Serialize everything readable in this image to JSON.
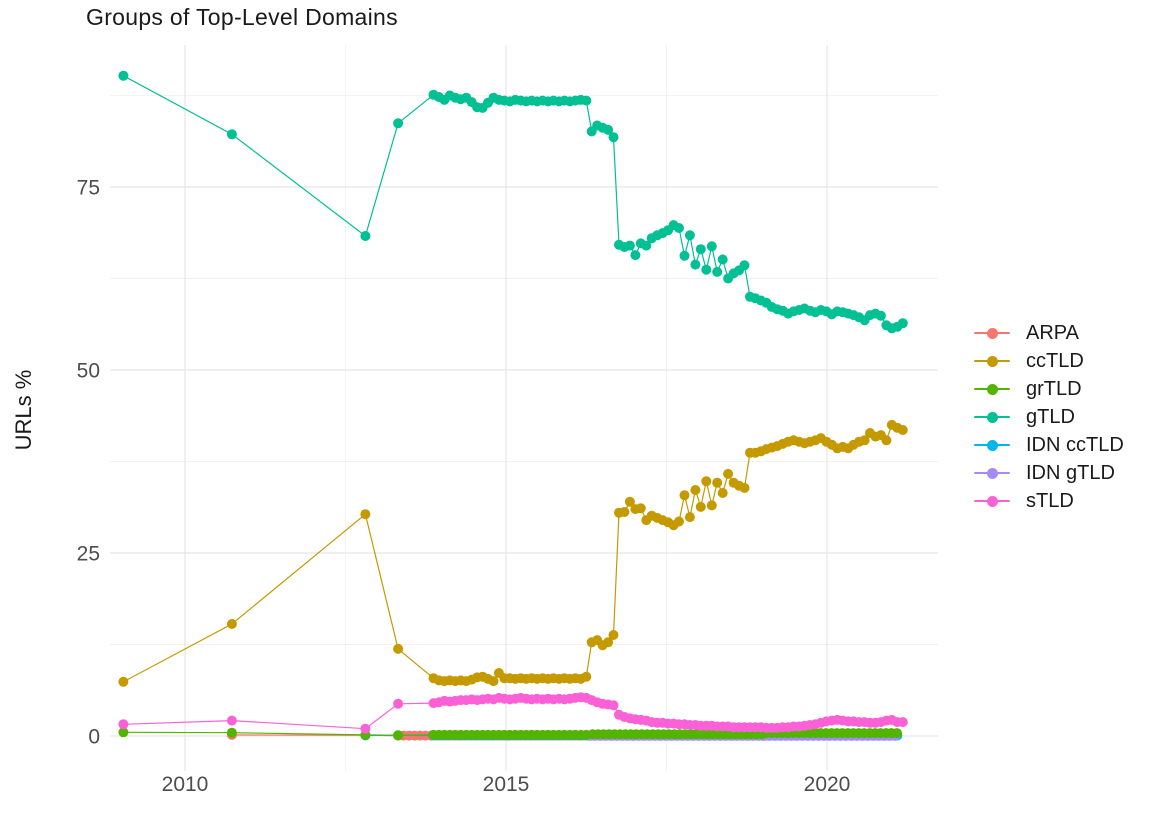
{
  "chart_data": {
    "type": "line",
    "title": "Groups of Top-Level Domains",
    "xlabel": "",
    "ylabel": "URLs %",
    "x_ticks": [
      2010,
      2015,
      2020
    ],
    "x_minor_ticks": [
      2012.5,
      2017.5
    ],
    "y_ticks": [
      0,
      25,
      50,
      75
    ],
    "y_minor_ticks": [
      12.5,
      37.5,
      62.5,
      87.5
    ],
    "xlim": [
      2008.85,
      2021.75
    ],
    "ylim": [
      -4.8,
      94.5
    ],
    "grid": true,
    "legend_position": "right",
    "marker": "point",
    "series": [
      {
        "name": "ARPA",
        "color": "#F8766D",
        "points": [
          [
            2010.73,
            0.15
          ],
          [
            2012.81,
            0.1
          ]
        ],
        "flat_runs": [
          {
            "from": 2013.32,
            "to": 2021.1,
            "step": 0.085,
            "value": 0.05
          }
        ]
      },
      {
        "name": "ccTLD",
        "color": "#C49A00",
        "points": [
          [
            2009.04,
            7.4
          ],
          [
            2010.73,
            15.3
          ],
          [
            2012.81,
            30.3
          ],
          [
            2013.32,
            11.9
          ]
        ],
        "monthly": {
          "x_start": 2013.87,
          "x_step": 0.085,
          "y": [
            7.9,
            7.6,
            7.5,
            7.6,
            7.5,
            7.6,
            7.5,
            7.7,
            8.0,
            8.1,
            7.8,
            7.5,
            8.6,
            7.9,
            7.9,
            7.8,
            7.9,
            7.8,
            7.9,
            7.8,
            7.9,
            7.8,
            7.9,
            7.8,
            7.9,
            7.8,
            7.9,
            7.8,
            8.1,
            12.8,
            13.1,
            12.4,
            12.8,
            13.8,
            30.5,
            30.6,
            32.0,
            31.0,
            31.1,
            29.5,
            30.1,
            29.8,
            29.5,
            29.2,
            28.8,
            29.3,
            32.9,
            29.9,
            33.6,
            31.3,
            34.8,
            31.5,
            34.6,
            33.2,
            35.8,
            34.6,
            34.2,
            33.9,
            38.7,
            38.7,
            38.9,
            39.2,
            39.4,
            39.6,
            39.9,
            40.2,
            40.4,
            40.2,
            40.0,
            40.2,
            40.4,
            40.7,
            40.2,
            39.8,
            39.3,
            39.5,
            39.3,
            39.8,
            40.2,
            40.4,
            41.4,
            40.9,
            41.1,
            40.4,
            42.5,
            42.1,
            41.8
          ]
        }
      },
      {
        "name": "grTLD",
        "color": "#53B400",
        "points": [
          [
            2009.04,
            0.5
          ],
          [
            2010.73,
            0.45
          ],
          [
            2012.81,
            0.15
          ],
          [
            2013.32,
            0.1
          ]
        ],
        "flat_runs": [
          {
            "from": 2013.87,
            "to": 2016.3,
            "step": 0.085,
            "value": 0.15
          },
          {
            "from": 2016.35,
            "to": 2019.0,
            "step": 0.085,
            "value": 0.25
          },
          {
            "from": 2019.05,
            "to": 2021.1,
            "step": 0.085,
            "value": 0.4
          }
        ]
      },
      {
        "name": "gTLD",
        "color": "#00C094",
        "points": [
          [
            2009.04,
            90.2
          ],
          [
            2010.73,
            82.2
          ],
          [
            2012.81,
            68.3
          ],
          [
            2013.32,
            83.7
          ]
        ],
        "monthly": {
          "x_start": 2013.87,
          "x_step": 0.085,
          "y": [
            87.6,
            87.3,
            86.9,
            87.5,
            87.2,
            87.0,
            87.2,
            86.6,
            85.9,
            85.8,
            86.5,
            87.2,
            86.9,
            86.8,
            86.7,
            86.9,
            86.8,
            86.7,
            86.8,
            86.7,
            86.8,
            86.7,
            86.8,
            86.7,
            86.8,
            86.7,
            86.8,
            86.9,
            86.8,
            82.6,
            83.4,
            83.1,
            82.8,
            81.8,
            67.1,
            66.8,
            67.0,
            65.7,
            67.3,
            67.0,
            68.0,
            68.4,
            68.7,
            69.1,
            69.8,
            69.4,
            65.6,
            68.4,
            64.4,
            66.5,
            63.7,
            66.9,
            63.4,
            65.1,
            62.5,
            63.2,
            63.6,
            64.3,
            60.0,
            59.8,
            59.5,
            59.2,
            58.6,
            58.3,
            58.1,
            57.7,
            58.0,
            58.2,
            58.4,
            58.1,
            57.9,
            58.2,
            58.0,
            57.6,
            58.0,
            57.9,
            57.7,
            57.5,
            57.2,
            56.8,
            57.5,
            57.7,
            57.4,
            56.1,
            55.7,
            55.9,
            56.4
          ]
        }
      },
      {
        "name": "IDN ccTLD",
        "color": "#00B6EB",
        "points": [
          [
            2012.81,
            0.08
          ],
          [
            2013.32,
            0.08
          ]
        ],
        "flat_runs": [
          {
            "from": 2013.87,
            "to": 2021.1,
            "step": 0.085,
            "value": 0.07
          }
        ]
      },
      {
        "name": "IDN gTLD",
        "color": "#A58AFF",
        "points": [],
        "flat_runs": [
          {
            "from": 2016.3,
            "to": 2021.1,
            "step": 0.085,
            "value": 0.02
          }
        ]
      },
      {
        "name": "sTLD",
        "color": "#FB61D7",
        "points": [
          [
            2009.04,
            1.6
          ],
          [
            2010.73,
            2.1
          ],
          [
            2012.81,
            1.0
          ],
          [
            2013.32,
            4.4
          ]
        ],
        "monthly": {
          "x_start": 2013.87,
          "x_step": 0.085,
          "y": [
            4.5,
            4.6,
            4.8,
            4.7,
            4.8,
            4.9,
            4.9,
            5.0,
            4.9,
            5.0,
            5.1,
            5.0,
            5.2,
            5.1,
            5.0,
            5.1,
            5.2,
            5.1,
            5.0,
            5.1,
            5.0,
            5.1,
            5.0,
            5.1,
            5.0,
            5.1,
            5.2,
            5.3,
            5.2,
            4.9,
            4.6,
            4.4,
            4.3,
            4.2,
            2.9,
            2.6,
            2.4,
            2.3,
            2.2,
            2.1,
            1.9,
            1.8,
            1.8,
            1.7,
            1.7,
            1.6,
            1.6,
            1.5,
            1.5,
            1.4,
            1.4,
            1.4,
            1.3,
            1.3,
            1.3,
            1.2,
            1.2,
            1.2,
            1.2,
            1.2,
            1.2,
            1.1,
            1.1,
            1.1,
            1.2,
            1.2,
            1.3,
            1.3,
            1.4,
            1.5,
            1.6,
            1.8,
            2.0,
            2.1,
            2.2,
            2.1,
            2.0,
            2.0,
            1.9,
            1.9,
            1.8,
            1.8,
            1.9,
            2.1,
            2.2,
            1.9,
            1.9
          ]
        }
      }
    ]
  },
  "style": {
    "grid_major_color": "#e6e6e6",
    "grid_minor_color": "#f2f2f2",
    "tick_label_color": "#4d4d4d",
    "title_color": "#1a1a1a"
  }
}
